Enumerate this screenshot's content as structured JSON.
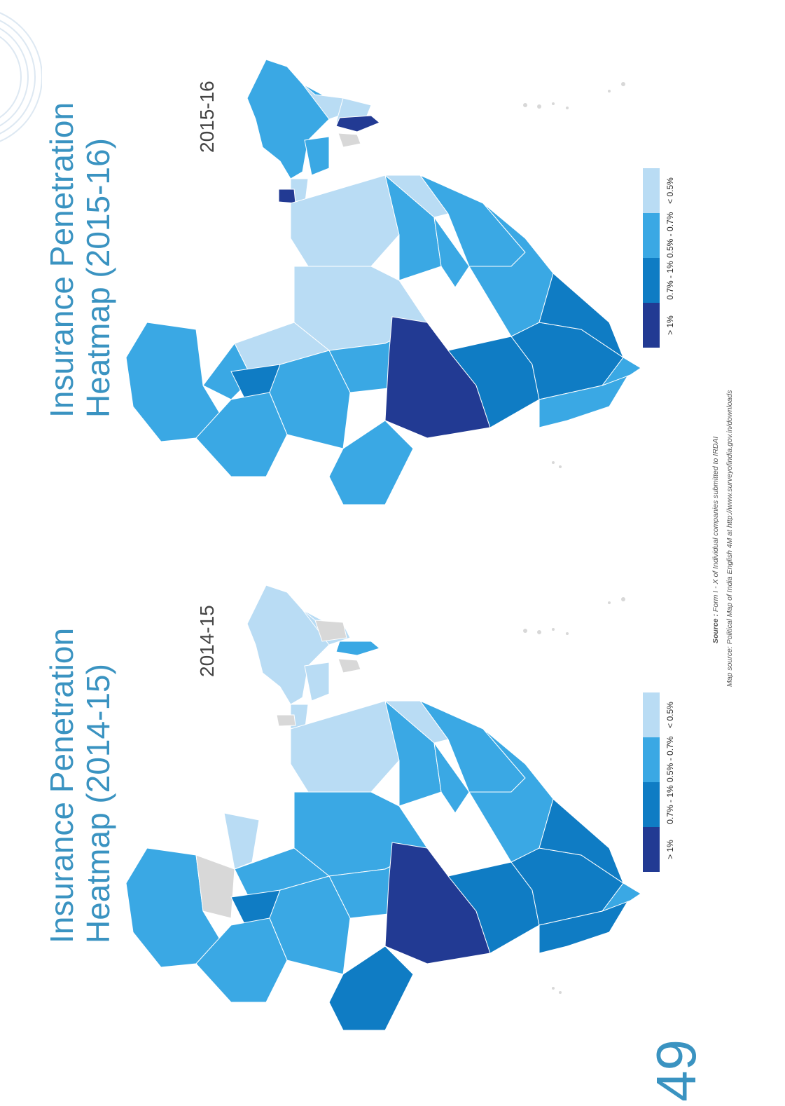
{
  "maps": [
    {
      "title_line1": "Insurance Penetration",
      "title_line2": "Heatmap (2015-16)",
      "year": "2015-16"
    },
    {
      "title_line1": "Insurance Penetration",
      "title_line2": "Heatmap (2014-15)",
      "year": "2014-15"
    }
  ],
  "legend": [
    {
      "label": "> 1%",
      "color": "#223a93"
    },
    {
      "label": "0.7% - 1%",
      "color": "#0f7cc4"
    },
    {
      "label": "0.5% - 0.7%",
      "color": "#3aa8e4"
    },
    {
      "label": "< 0.5%",
      "color": "#b9dcf4"
    }
  ],
  "colors": {
    "no_data": "#d8d8d8",
    "accent": "#3a93c1"
  },
  "source_line1_label": "Source :",
  "source_line1_text": "Form I - X of Individual companies submitted to IRDAI",
  "source_line2": "Map source: Political Map of India English 4M at http://www.surveyofindia.gov.in/downloads",
  "page_number": "49"
}
